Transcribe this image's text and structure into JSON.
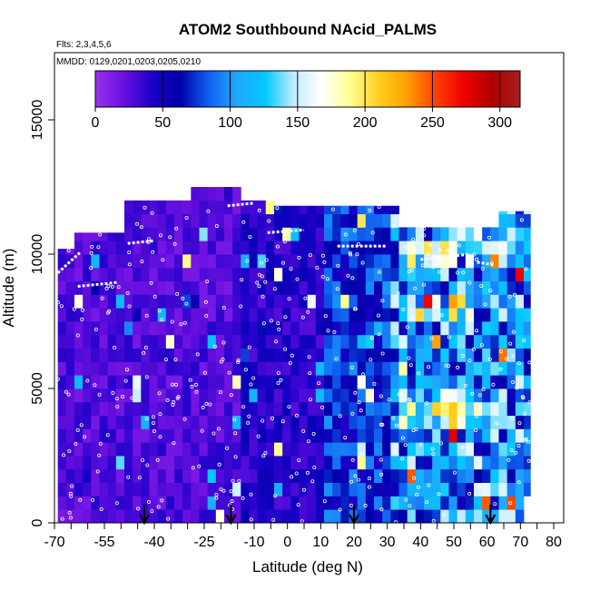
{
  "chart_data": {
    "type": "heatmap",
    "title": "ATOM2 Southbound NAcid_PALMS",
    "flights_note": "Flts: 2,3,4,5,6",
    "dates_note": "MMDD: 0129,0201,0203,0205,0210",
    "xlabel": "Latitude (deg N)",
    "ylabel": "Altitude (m)",
    "xlim": [
      -70,
      83
    ],
    "ylim": [
      0,
      17500
    ],
    "x_ticks": [
      -70,
      -55,
      -40,
      -25,
      -10,
      0,
      10,
      20,
      30,
      40,
      50,
      60,
      70,
      80
    ],
    "y_ticks": [
      0,
      5000,
      10000,
      15000
    ],
    "colorbar": {
      "ticks": [
        0,
        50,
        100,
        150,
        200,
        250,
        300
      ],
      "range": [
        0,
        315
      ],
      "colors": [
        "#9a2ff0",
        "#6a10e0",
        "#1a00c8",
        "#0000a8",
        "#1060f0",
        "#20a8ff",
        "#00c8ff",
        "#c0ecff",
        "#ffffff",
        "#ffff90",
        "#ffd020",
        "#ffa000",
        "#ff4000",
        "#f00000",
        "#b00000",
        "#a52020"
      ]
    },
    "markers": {
      "arrow_latitudes": [
        -43,
        -17,
        20,
        61
      ]
    },
    "grid": false,
    "legend_placement": "colorbar-top"
  }
}
